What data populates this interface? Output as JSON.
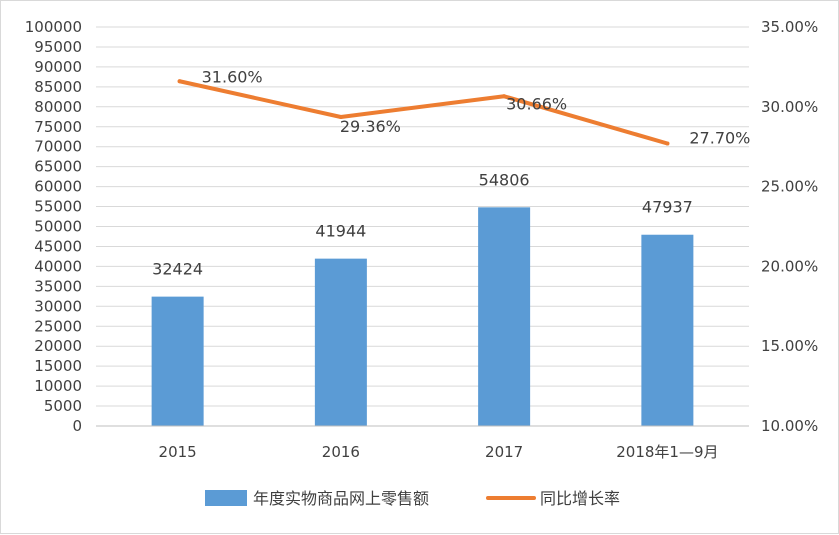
{
  "chart_data": {
    "type": "bar",
    "title": "",
    "xlabel": "",
    "ylabel": "",
    "categories": [
      "2015",
      "2016",
      "2017",
      "2018年1—9月"
    ],
    "series": [
      {
        "name": "年度实物商品网上零售额",
        "type": "bar",
        "axis": "left",
        "color": "#5b9bd5",
        "values": [
          32424,
          41944,
          54806,
          47937
        ],
        "value_labels": [
          "32424",
          "41944",
          "54806",
          "47937"
        ]
      },
      {
        "name": "同比增长率",
        "type": "line",
        "axis": "right",
        "color": "#ed7d31",
        "values": [
          31.6,
          29.36,
          30.66,
          27.7
        ],
        "value_labels": [
          "31.60%",
          "29.36%",
          "30.66%",
          "27.70%"
        ]
      }
    ],
    "y_left": {
      "ylim": [
        0,
        100000
      ],
      "ticks": [
        "0",
        "5000",
        "10000",
        "15000",
        "20000",
        "25000",
        "30000",
        "35000",
        "40000",
        "45000",
        "50000",
        "55000",
        "60000",
        "65000",
        "70000",
        "75000",
        "80000",
        "85000",
        "90000",
        "95000",
        "100000"
      ]
    },
    "y_right": {
      "ylim": [
        10,
        35
      ],
      "ticks": [
        "10.00%",
        "15.00%",
        "20.00%",
        "25.00%",
        "30.00%",
        "35.00%"
      ]
    },
    "grid": true,
    "legend_position": "bottom"
  }
}
